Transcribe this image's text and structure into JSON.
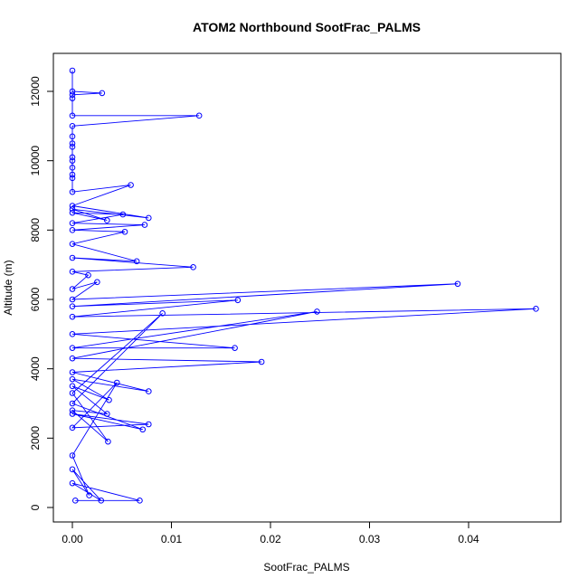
{
  "chart_data": {
    "type": "line",
    "title": "ATOM2 Northbound SootFrac_PALMS",
    "xlabel": "SootFrac_PALMS",
    "ylabel": "Altitude (m)",
    "xlim": [
      0,
      0.047
    ],
    "ylim": [
      0,
      12600
    ],
    "xticks": [
      0,
      0.01,
      0.02,
      0.03,
      0.04
    ],
    "xtick_labels": [
      "0.00",
      "0.01",
      "0.02",
      "0.03",
      "0.04"
    ],
    "yticks": [
      0,
      2000,
      4000,
      6000,
      8000,
      10000,
      12000
    ],
    "ytick_labels": [
      "0",
      "2000",
      "4000",
      "6000",
      "8000",
      "10000",
      "12000"
    ],
    "grid": false,
    "series": [
      {
        "color": "#0000ff",
        "marker": "open-circle",
        "x": [
          0.0003,
          0.0068,
          0.0,
          0.0029,
          0.0,
          0.0017,
          0.0,
          0.0045,
          0.0,
          0.0077,
          0.0,
          0.0071,
          0.0,
          0.0091,
          0.0,
          0.0036,
          0.0,
          0.0035,
          0.0,
          0.0037,
          0.0,
          0.0077,
          0.0,
          0.0191,
          0.0,
          0.0247,
          0.0,
          0.0164,
          0.0,
          0.0468,
          0.0,
          0.0167,
          0.0,
          0.0389,
          0.0,
          0.0025,
          0.0,
          0.0016,
          0.0,
          0.0122,
          0.0,
          0.0065,
          0.0,
          0.0053,
          0.0,
          0.0073,
          0.0,
          0.0051,
          0.0,
          0.0035,
          0.0,
          0.0077,
          0.0,
          0.0059,
          0.0,
          0.0,
          0.0,
          0.0,
          0.0,
          0.0,
          0.0,
          0.0,
          0.0,
          0.0,
          0.0128,
          0.0,
          0.0,
          0.0,
          0.003,
          0.0,
          0.0
        ],
        "y": [
          200,
          200,
          700,
          200,
          1100,
          350,
          1500,
          3600,
          2300,
          2400,
          2700,
          2250,
          3000,
          5600,
          3300,
          1900,
          2800,
          2700,
          3500,
          3100,
          3700,
          3350,
          3900,
          4200,
          4300,
          5650,
          4600,
          4600,
          5000,
          5730,
          5500,
          5980,
          5800,
          6450,
          6000,
          6500,
          6300,
          6700,
          6800,
          6930,
          7200,
          7100,
          7600,
          7950,
          8000,
          8150,
          8200,
          8450,
          8500,
          8280,
          8600,
          8350,
          8700,
          9300,
          9100,
          9500,
          9600,
          9800,
          10000,
          10100,
          10400,
          10500,
          10700,
          11000,
          11300,
          11300,
          11800,
          11900,
          11950,
          12000,
          12600
        ]
      }
    ]
  }
}
